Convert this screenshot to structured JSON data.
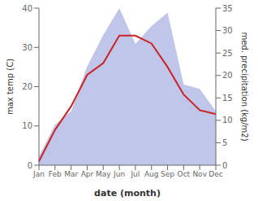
{
  "chart_data": {
    "type": "line",
    "categories": [
      "Jan",
      "Feb",
      "Mar",
      "Apr",
      "May",
      "Jun",
      "Jul",
      "Aug",
      "Sep",
      "Oct",
      "Nov",
      "Dec"
    ],
    "series": [
      {
        "type": "area",
        "axis": "y2",
        "color": "#b8c0e8",
        "values": [
          2,
          9,
          12,
          22,
          29,
          35,
          27,
          31,
          34,
          18,
          17,
          12
        ]
      },
      {
        "type": "line",
        "color": "#cc2222",
        "values": [
          1,
          9,
          15,
          23,
          26,
          33,
          33,
          31,
          25,
          18,
          14,
          13
        ]
      }
    ],
    "xlabel": "date (month)",
    "ylabel": "max temp (C)",
    "y2label": "med. precipitation (kg/m2)",
    "ylim": [
      0,
      40
    ],
    "yticks": [
      0,
      10,
      20,
      30,
      40
    ],
    "y2lim": [
      0,
      35
    ],
    "y2ticks": [
      0,
      5,
      10,
      15,
      20,
      25,
      30,
      35
    ]
  }
}
